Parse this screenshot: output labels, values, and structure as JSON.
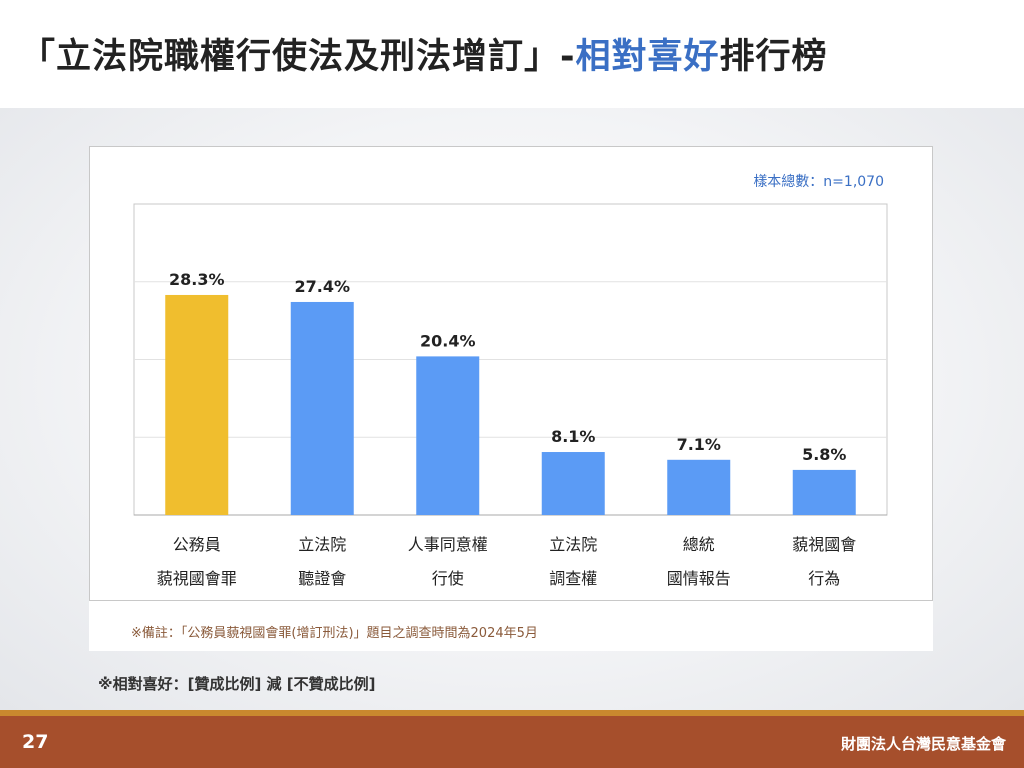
{
  "title": {
    "prefix": "「立法院職權行使法及刑法增訂」-",
    "highlight": "相對喜好",
    "suffix": "排行榜"
  },
  "sample_size": "樣本總數：n=1,070",
  "footnote": "※備註：「公務員藐視國會罪(增訂刑法)」題目之調查時間為2024年5月",
  "definition": "※相對喜好：[贊成比例] 減 [不贊成比例]",
  "page_number": "27",
  "organization": "財團法人台灣民意基金會",
  "colors": {
    "highlight_bar": "#f0be2e",
    "bar": "#5b9bf5",
    "title_highlight": "#3a6fc4",
    "footer": "#a64f2c",
    "footer_accent": "#c9892e"
  },
  "chart_data": {
    "type": "bar",
    "categories": [
      [
        "公務員",
        "藐視國會罪"
      ],
      [
        "立法院",
        "聽證會"
      ],
      [
        "人事同意權",
        "行使"
      ],
      [
        "立法院",
        "調查權"
      ],
      [
        "總統",
        "國情報告"
      ],
      [
        "藐視國會",
        "行為"
      ]
    ],
    "values": [
      28.3,
      27.4,
      20.4,
      8.1,
      7.1,
      5.8
    ],
    "value_labels": [
      "28.3%",
      "27.4%",
      "20.4%",
      "8.1%",
      "7.1%",
      "5.8%"
    ],
    "highlight_index": 0,
    "ylim": [
      0,
      40
    ],
    "grid": true,
    "title": "",
    "xlabel": "",
    "ylabel": ""
  }
}
